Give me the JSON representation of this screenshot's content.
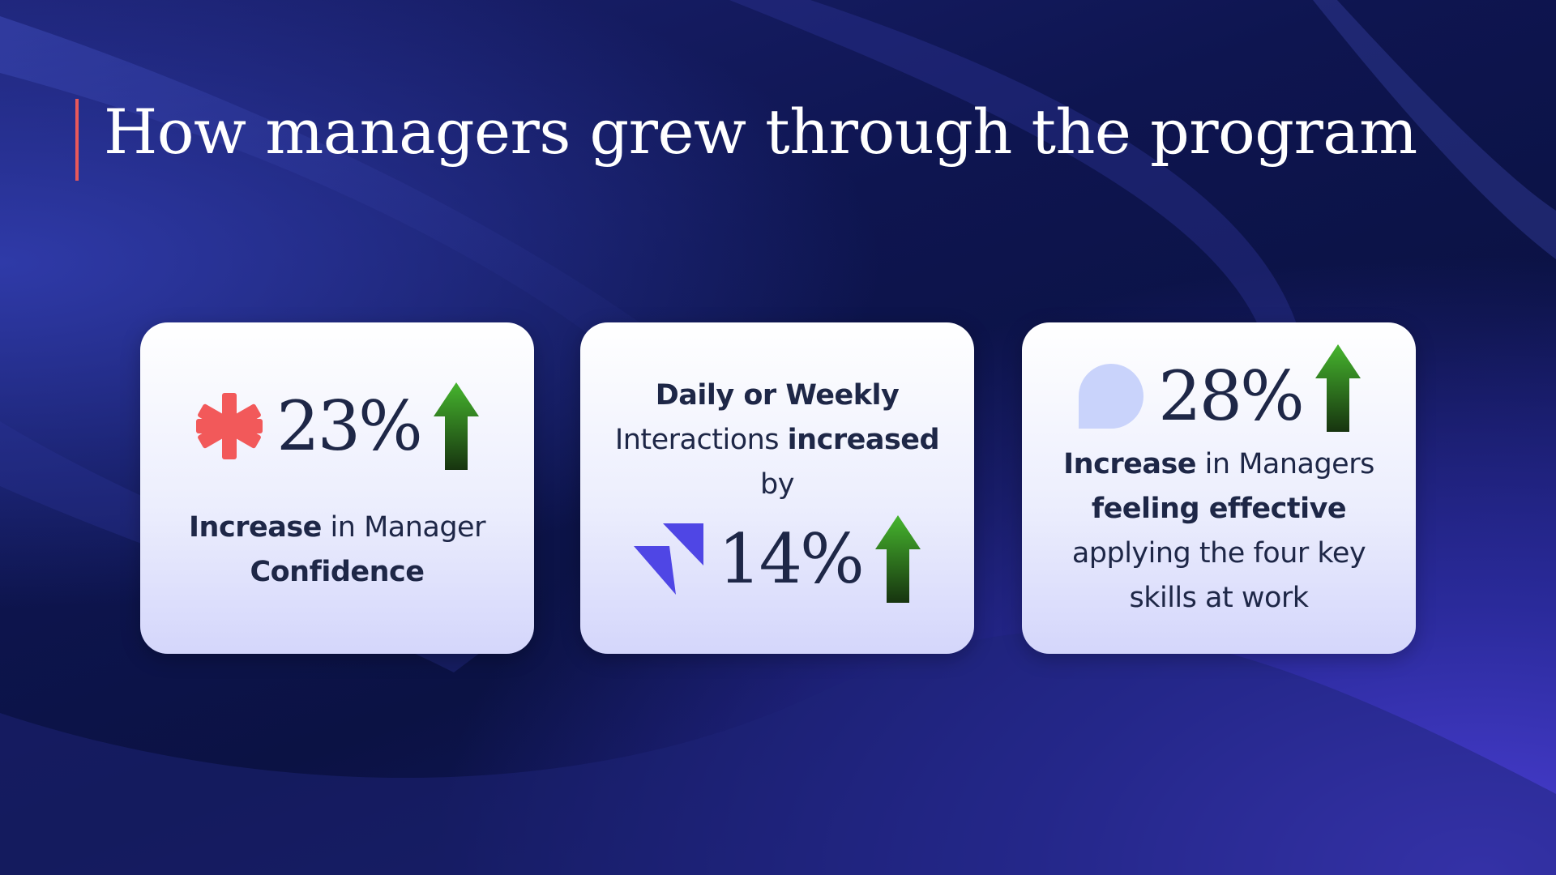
{
  "title": "How managers grew through the program",
  "cards": [
    {
      "stat": "23%",
      "lines": [
        [
          "Increase",
          "in Manager"
        ],
        [
          "Confidence"
        ]
      ]
    },
    {
      "stat": "14%",
      "lines": [
        [
          "Daily or Weekly"
        ],
        [
          "Interactions",
          "increased"
        ],
        [
          "by"
        ]
      ]
    },
    {
      "stat": "28%",
      "lines": [
        [
          "Increase",
          "in Managers"
        ],
        [
          "feeling effective"
        ],
        [
          "applying the four key"
        ],
        [
          "skills at work"
        ]
      ]
    }
  ]
}
